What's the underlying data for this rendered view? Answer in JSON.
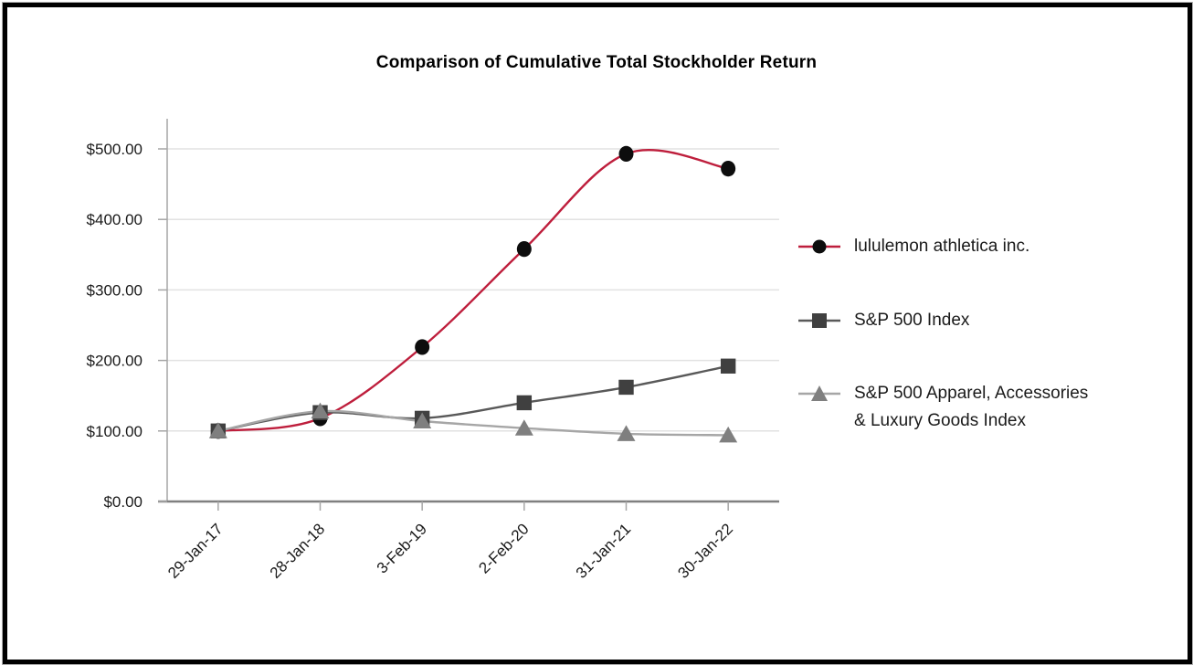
{
  "chart_data": {
    "type": "line",
    "title": "Comparison of Cumulative Total Stockholder Return",
    "categories": [
      "29-Jan-17",
      "28-Jan-18",
      "3-Feb-19",
      "2-Feb-20",
      "31-Jan-21",
      "30-Jan-22"
    ],
    "series": [
      {
        "name": "lululemon athletica inc.",
        "marker": "circle",
        "marker_color": "#0d0d0d",
        "line_color": "#be1e3c",
        "values": [
          100,
          118,
          219,
          358,
          493,
          472
        ]
      },
      {
        "name": "S&P 500 Index",
        "marker": "square",
        "marker_color": "#404040",
        "line_color": "#595959",
        "values": [
          100,
          126,
          118,
          140,
          162,
          192
        ]
      },
      {
        "name": "S&P 500 Apparel, Accessories & Luxury Goods Index",
        "name_lines": [
          "S&P 500 Apparel, Accessories",
          "& Luxury Goods Index"
        ],
        "marker": "triangle",
        "marker_color": "#7f7f7f",
        "line_color": "#a6a6a6",
        "values": [
          100,
          128,
          114,
          104,
          96,
          94
        ]
      }
    ],
    "y_axis": {
      "min": 0,
      "max": 500,
      "step": 100,
      "tick_labels": [
        "$0.00",
        "$100.00",
        "$200.00",
        "$300.00",
        "$400.00",
        "$500.00"
      ]
    },
    "x_axis": {
      "label_rotation_deg": -45
    },
    "grid": true,
    "smoothed_lines": true,
    "legend_position": "right",
    "style": {
      "gridline_color": "#e2e2e2",
      "axis_color": "#808080",
      "tick_color": "#a6a6a6",
      "text_color": "#1a1a1a"
    }
  }
}
